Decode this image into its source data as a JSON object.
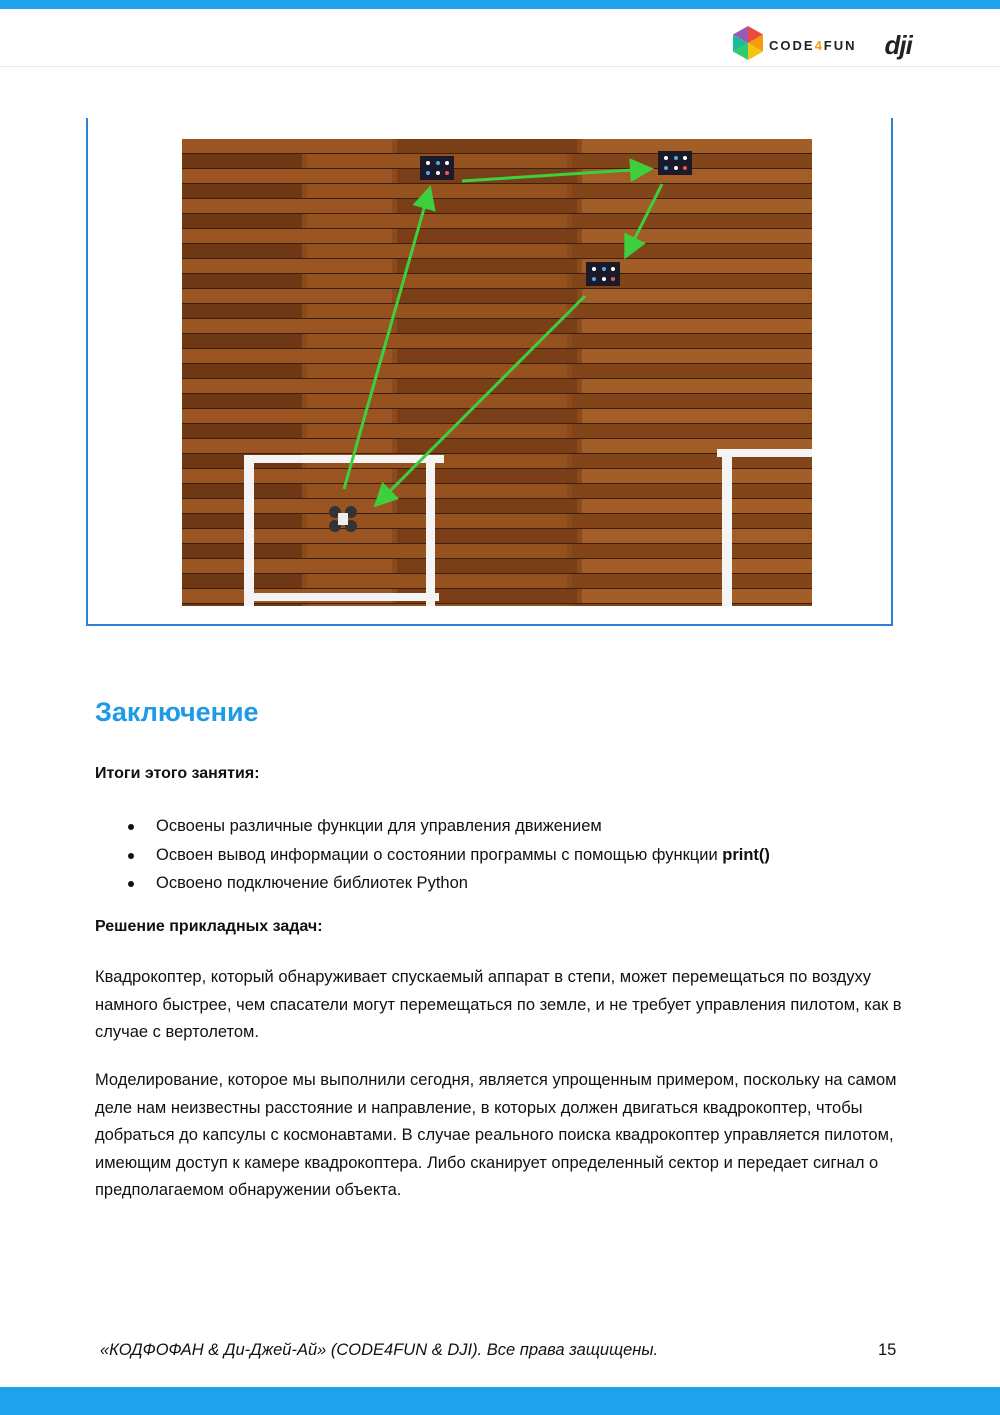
{
  "header": {
    "brand_text": "CODE4FUN",
    "brand_text_prefix": "CODE",
    "brand_text_digit": "4",
    "brand_text_suffix": "FUN",
    "partner_logo": "dji",
    "accent_color": "#1ea2ec"
  },
  "figure": {
    "description_icon": "drone-flight-path-photo",
    "arrow_color": "#3ecf3e"
  },
  "content": {
    "title": "Заключение",
    "summary_heading": "Итоги этого занятия:",
    "bullets": [
      {
        "text": "Освоены различные функции для управления движением",
        "bold": ""
      },
      {
        "text": "Освоен вывод информации о состоянии программы с помощью функции ",
        "bold": "print()"
      },
      {
        "text": "Освоено подключение библиотек Python",
        "bold": ""
      }
    ],
    "applied_heading": "Решение прикладных задач:",
    "para1": "Квадрокоптер, который обнаруживает спускаемый аппарат в степи, может перемещаться по воздуху намного быстрее, чем спасатели могут перемещаться по земле, и не требует управления пилотом, как в случае с вертолетом.",
    "para2": "Моделирование, которое мы выполнили сегодня, является упрощенным примером, поскольку на самом деле нам неизвестны расстояние и направление, в которых должен двигаться квадрокоптер, чтобы добраться до капсулы с космонавтами. В случае реального поиска квадрокоптер управляется пилотом, имеющим доступ к камере квадрокоптера. Либо сканирует определенный сектор и передает сигнал о предполагаемом обнаружении объекта."
  },
  "footer": {
    "copyright": "«КОДФОФАН & Ди-Джей-Ай» (CODE4FUN & DJI). Все права защищены.",
    "page_number": "15"
  }
}
